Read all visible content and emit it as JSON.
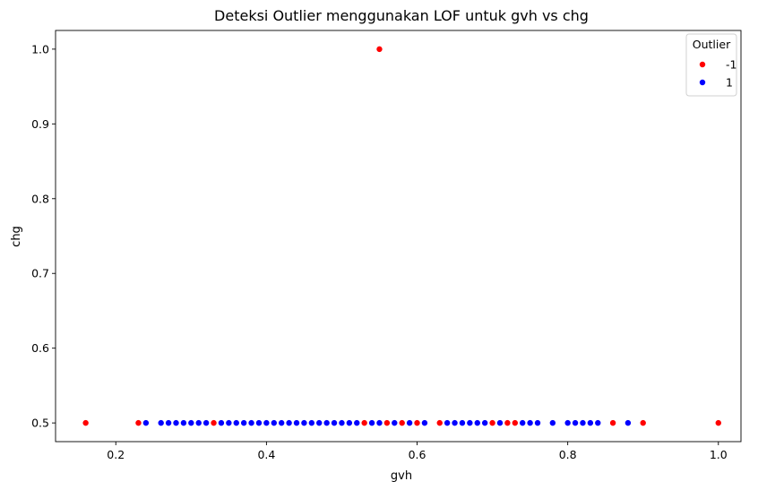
{
  "chart_data": {
    "type": "scatter",
    "title": "Deteksi Outlier menggunakan LOF untuk gvh vs chg",
    "xlabel": "gvh",
    "ylabel": "chg",
    "xlim": [
      0.12,
      1.03
    ],
    "ylim": [
      0.475,
      1.025
    ],
    "xticks": [
      "0.2",
      "0.4",
      "0.6",
      "0.8",
      "1.0"
    ],
    "yticks": [
      "0.5",
      "0.6",
      "0.7",
      "0.8",
      "0.9",
      "1.0"
    ],
    "grid": false,
    "legend": {
      "title": "Outlier",
      "placement": "top-right"
    },
    "series": [
      {
        "name": "-1",
        "color": "#ff0000",
        "points": [
          [
            0.16,
            0.5
          ],
          [
            0.23,
            0.5
          ],
          [
            0.33,
            0.5
          ],
          [
            0.53,
            0.5
          ],
          [
            0.55,
            1.0
          ],
          [
            0.56,
            0.5
          ],
          [
            0.58,
            0.5
          ],
          [
            0.6,
            0.5
          ],
          [
            0.63,
            0.5
          ],
          [
            0.7,
            0.5
          ],
          [
            0.72,
            0.5
          ],
          [
            0.73,
            0.5
          ],
          [
            0.86,
            0.5
          ],
          [
            0.9,
            0.5
          ],
          [
            1.0,
            0.5
          ]
        ]
      },
      {
        "name": "1",
        "color": "#0000ff",
        "points": [
          [
            0.24,
            0.5
          ],
          [
            0.26,
            0.5
          ],
          [
            0.27,
            0.5
          ],
          [
            0.28,
            0.5
          ],
          [
            0.29,
            0.5
          ],
          [
            0.3,
            0.5
          ],
          [
            0.31,
            0.5
          ],
          [
            0.32,
            0.5
          ],
          [
            0.34,
            0.5
          ],
          [
            0.35,
            0.5
          ],
          [
            0.36,
            0.5
          ],
          [
            0.37,
            0.5
          ],
          [
            0.38,
            0.5
          ],
          [
            0.39,
            0.5
          ],
          [
            0.4,
            0.5
          ],
          [
            0.41,
            0.5
          ],
          [
            0.42,
            0.5
          ],
          [
            0.43,
            0.5
          ],
          [
            0.44,
            0.5
          ],
          [
            0.45,
            0.5
          ],
          [
            0.46,
            0.5
          ],
          [
            0.47,
            0.5
          ],
          [
            0.48,
            0.5
          ],
          [
            0.49,
            0.5
          ],
          [
            0.5,
            0.5
          ],
          [
            0.51,
            0.5
          ],
          [
            0.52,
            0.5
          ],
          [
            0.54,
            0.5
          ],
          [
            0.55,
            0.5
          ],
          [
            0.57,
            0.5
          ],
          [
            0.59,
            0.5
          ],
          [
            0.61,
            0.5
          ],
          [
            0.64,
            0.5
          ],
          [
            0.65,
            0.5
          ],
          [
            0.66,
            0.5
          ],
          [
            0.67,
            0.5
          ],
          [
            0.68,
            0.5
          ],
          [
            0.69,
            0.5
          ],
          [
            0.71,
            0.5
          ],
          [
            0.74,
            0.5
          ],
          [
            0.75,
            0.5
          ],
          [
            0.76,
            0.5
          ],
          [
            0.78,
            0.5
          ],
          [
            0.8,
            0.5
          ],
          [
            0.81,
            0.5
          ],
          [
            0.82,
            0.5
          ],
          [
            0.83,
            0.5
          ],
          [
            0.84,
            0.5
          ],
          [
            0.88,
            0.5
          ]
        ]
      }
    ]
  }
}
